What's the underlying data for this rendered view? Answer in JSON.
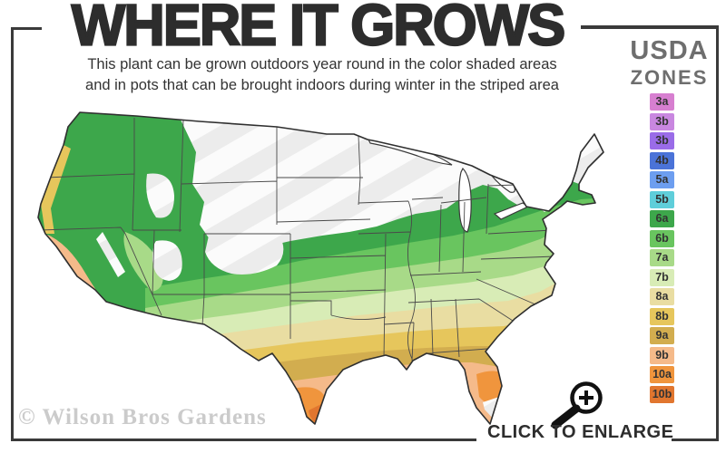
{
  "header": {
    "title": "WHERE IT GROWS",
    "subtitle_line1": "This plant can be grown outdoors year round in the color shaded areas",
    "subtitle_line2": "and in pots that can be brought indoors during winter in the striped area"
  },
  "legend": {
    "title_line1": "USDA",
    "title_line2": "ZONES",
    "zones": [
      {
        "label": "3a",
        "color": "#d77fd0"
      },
      {
        "label": "3b",
        "color": "#c987e0"
      },
      {
        "label": "3b",
        "color": "#9a6ce8"
      },
      {
        "label": "4b",
        "color": "#4b73d8"
      },
      {
        "label": "5a",
        "color": "#6d9ef0"
      },
      {
        "label": "5b",
        "color": "#5fceda"
      },
      {
        "label": "6a",
        "color": "#3da74b"
      },
      {
        "label": "6b",
        "color": "#69c55f"
      },
      {
        "label": "7a",
        "color": "#a8da88"
      },
      {
        "label": "7b",
        "color": "#d8ecb6"
      },
      {
        "label": "8a",
        "color": "#e9dda2"
      },
      {
        "label": "8b",
        "color": "#e6c65c"
      },
      {
        "label": "9a",
        "color": "#d2ad4f"
      },
      {
        "label": "9b",
        "color": "#f5ba8a"
      },
      {
        "label": "10a",
        "color": "#f0953d"
      },
      {
        "label": "10b",
        "color": "#e1762f"
      }
    ]
  },
  "map": {
    "watermark": "© Wilson Bros Gardens",
    "striped_area_meaning": "grow in pots, bring indoors during winter",
    "shaded_area_meaning": "grows outdoors year round"
  },
  "footer": {
    "enlarge_label": "CLICK TO ENLARGE"
  },
  "colors": {
    "frame": "#3a3a3a",
    "title_text": "#2d2d2d",
    "subtitle_text": "#333333",
    "legend_title_text": "#6e6e6e",
    "watermark_text": "#cbcbcb",
    "stripe_fill": "#ececec",
    "map_outline": "#2f2f2f"
  }
}
